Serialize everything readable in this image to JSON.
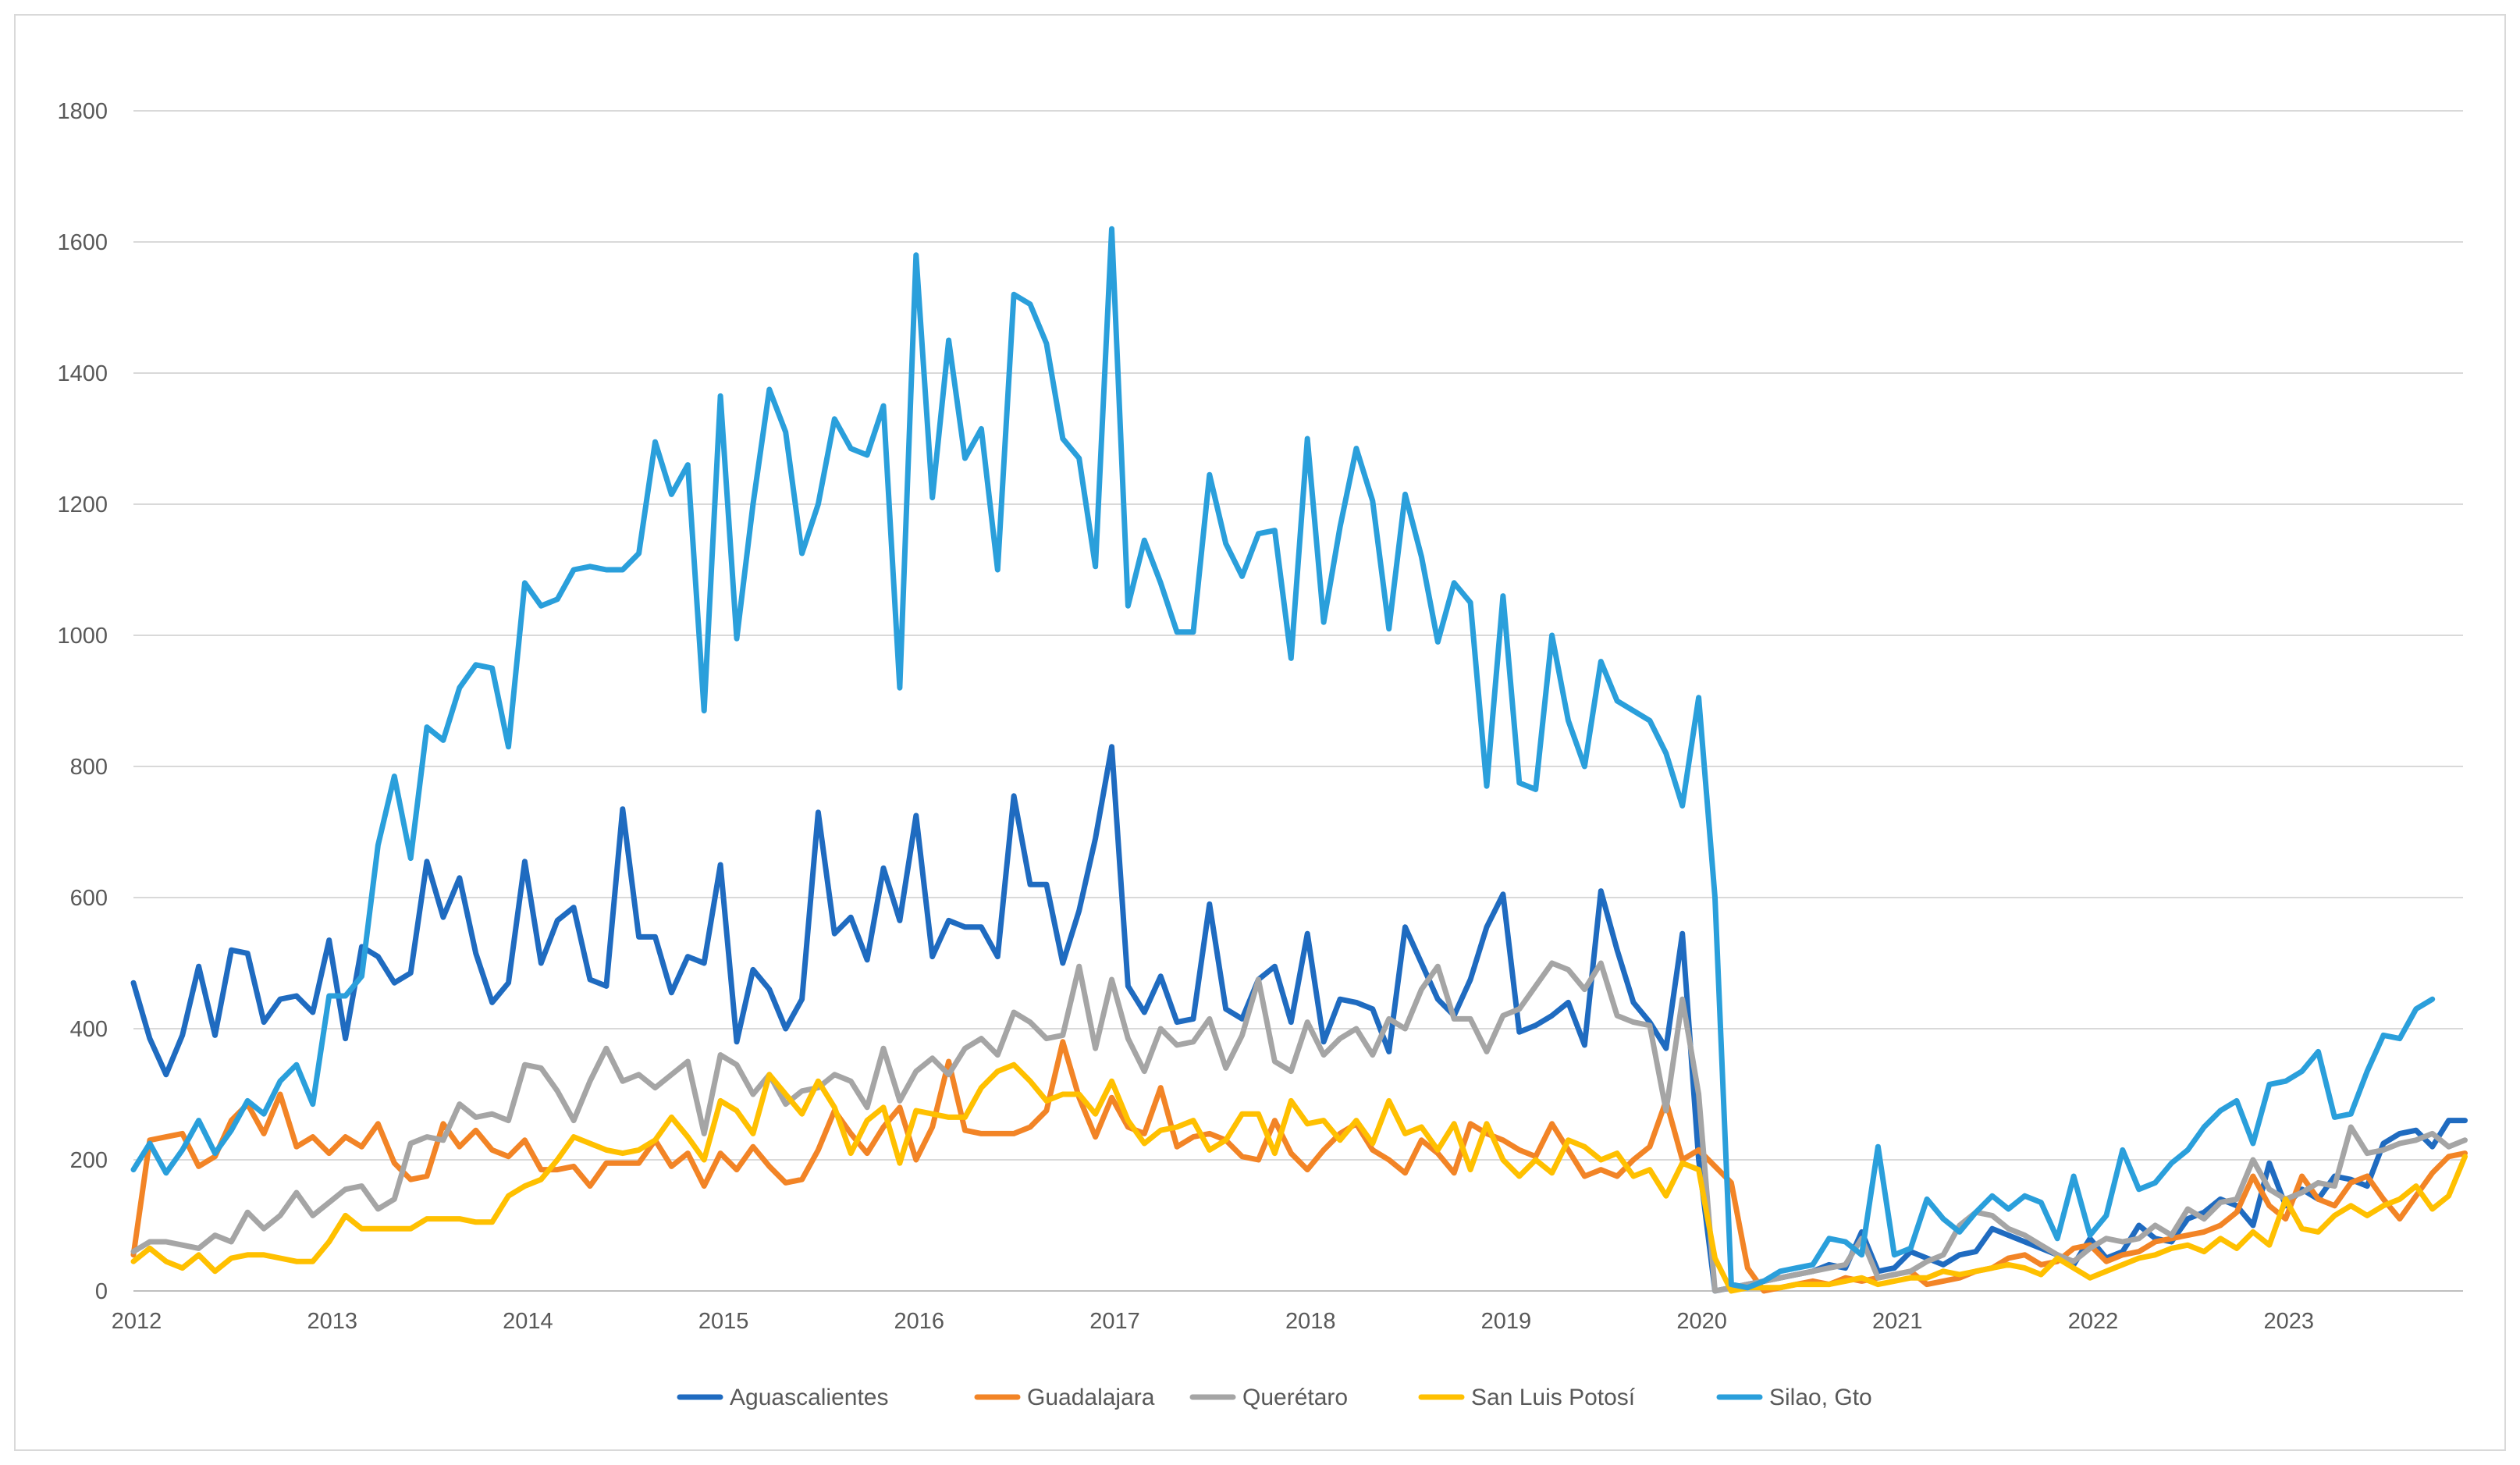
{
  "chart_data": {
    "type": "line",
    "title": "",
    "xlabel": "",
    "ylabel": "",
    "ylim": [
      0,
      1800
    ],
    "yticks": [
      "0",
      "200",
      "400",
      "600",
      "800",
      "1000",
      "1200",
      "1400",
      "1600",
      "1800"
    ],
    "xticks": [
      "2012",
      "2013",
      "2014",
      "2015",
      "2016",
      "2017",
      "2018",
      "2019",
      "2020",
      "2021",
      "2022",
      "2023"
    ],
    "x_start_year": 2012,
    "x_step_months": 1,
    "grid": true,
    "legend_position": "bottom",
    "series": [
      {
        "name": "Aguascalientes",
        "color": "#1f6bc0",
        "values": [
          470,
          385,
          330,
          390,
          495,
          390,
          520,
          515,
          410,
          445,
          450,
          425,
          535,
          385,
          525,
          510,
          470,
          485,
          655,
          570,
          630,
          515,
          440,
          470,
          655,
          500,
          565,
          585,
          475,
          465,
          735,
          540,
          540,
          455,
          510,
          500,
          650,
          380,
          490,
          460,
          400,
          445,
          730,
          545,
          570,
          505,
          645,
          565,
          725,
          510,
          565,
          555,
          555,
          510,
          755,
          620,
          620,
          500,
          580,
          690,
          830,
          465,
          425,
          480,
          410,
          415,
          590,
          430,
          415,
          475,
          495,
          410,
          545,
          380,
          445,
          440,
          430,
          365,
          555,
          500,
          445,
          420,
          475,
          555,
          605,
          395,
          405,
          420,
          440,
          375,
          610,
          520,
          440,
          410,
          370,
          545,
          200,
          0,
          5,
          10,
          15,
          20,
          25,
          30,
          40,
          35,
          90,
          30,
          35,
          60,
          50,
          40,
          55,
          60,
          95,
          85,
          75,
          65,
          55,
          40,
          80,
          50,
          60,
          100,
          80,
          75,
          110,
          120,
          140,
          130,
          100,
          195,
          130,
          155,
          140,
          175,
          170,
          160,
          225,
          240,
          245,
          220,
          260,
          260
        ]
      },
      {
        "name": "Guadalajara",
        "color": "#f28426",
        "values": [
          55,
          230,
          235,
          240,
          190,
          205,
          260,
          285,
          240,
          300,
          220,
          235,
          210,
          235,
          220,
          255,
          195,
          170,
          175,
          255,
          220,
          245,
          215,
          205,
          230,
          185,
          185,
          190,
          160,
          195,
          195,
          195,
          230,
          190,
          210,
          160,
          210,
          185,
          220,
          190,
          165,
          170,
          215,
          275,
          240,
          210,
          250,
          280,
          200,
          250,
          350,
          245,
          240,
          240,
          240,
          250,
          275,
          380,
          295,
          235,
          295,
          250,
          240,
          310,
          220,
          235,
          240,
          230,
          205,
          200,
          260,
          210,
          185,
          215,
          240,
          255,
          215,
          200,
          180,
          230,
          210,
          180,
          255,
          240,
          230,
          215,
          205,
          255,
          215,
          175,
          185,
          175,
          200,
          220,
          290,
          200,
          215,
          190,
          165,
          35,
          0,
          5,
          10,
          15,
          10,
          20,
          15,
          20,
          25,
          30,
          10,
          15,
          20,
          30,
          35,
          50,
          55,
          40,
          45,
          65,
          70,
          45,
          55,
          60,
          75,
          80,
          85,
          90,
          100,
          120,
          175,
          130,
          110,
          175,
          140,
          130,
          165,
          175,
          140,
          110,
          145,
          180,
          205,
          210
        ]
      },
      {
        "name": "Querétaro",
        "color": "#a5a5a5",
        "values": [
          60,
          75,
          75,
          70,
          65,
          85,
          75,
          120,
          95,
          115,
          150,
          115,
          135,
          155,
          160,
          125,
          140,
          225,
          235,
          230,
          285,
          265,
          270,
          260,
          345,
          340,
          305,
          260,
          320,
          370,
          320,
          330,
          310,
          330,
          350,
          240,
          360,
          345,
          300,
          330,
          285,
          305,
          310,
          330,
          320,
          280,
          370,
          290,
          335,
          355,
          330,
          370,
          385,
          360,
          425,
          410,
          385,
          390,
          495,
          370,
          475,
          385,
          335,
          400,
          375,
          380,
          415,
          340,
          390,
          475,
          350,
          335,
          410,
          360,
          385,
          400,
          360,
          415,
          400,
          460,
          495,
          415,
          415,
          365,
          420,
          430,
          465,
          500,
          490,
          460,
          500,
          420,
          410,
          405,
          275,
          445,
          300,
          0,
          5,
          10,
          15,
          20,
          25,
          30,
          35,
          40,
          80,
          20,
          25,
          30,
          45,
          55,
          100,
          120,
          115,
          95,
          85,
          70,
          55,
          45,
          65,
          80,
          75,
          80,
          100,
          85,
          125,
          110,
          135,
          140,
          200,
          155,
          140,
          150,
          165,
          160,
          250,
          210,
          215,
          225,
          230,
          240,
          220,
          230
        ]
      },
      {
        "name": "San Luis Potosí",
        "color": "#ffc000",
        "values": [
          45,
          65,
          45,
          35,
          55,
          30,
          50,
          55,
          55,
          50,
          45,
          45,
          75,
          115,
          95,
          95,
          95,
          95,
          110,
          110,
          110,
          105,
          105,
          145,
          160,
          170,
          200,
          235,
          225,
          215,
          210,
          215,
          230,
          265,
          235,
          200,
          290,
          275,
          240,
          330,
          300,
          270,
          320,
          280,
          210,
          260,
          280,
          195,
          275,
          270,
          265,
          265,
          310,
          335,
          345,
          320,
          290,
          300,
          300,
          270,
          320,
          260,
          225,
          245,
          250,
          260,
          215,
          230,
          270,
          270,
          210,
          290,
          255,
          260,
          230,
          260,
          225,
          290,
          240,
          250,
          215,
          255,
          185,
          255,
          200,
          175,
          200,
          180,
          230,
          220,
          200,
          210,
          175,
          185,
          145,
          195,
          185,
          50,
          0,
          5,
          5,
          5,
          10,
          10,
          10,
          15,
          20,
          10,
          15,
          20,
          20,
          30,
          25,
          30,
          35,
          40,
          35,
          25,
          50,
          35,
          20,
          30,
          40,
          50,
          55,
          65,
          70,
          60,
          80,
          65,
          90,
          70,
          140,
          95,
          90,
          115,
          130,
          115,
          130,
          140,
          160,
          125,
          145,
          205
        ]
      },
      {
        "name": "Silao, Gto",
        "color": "#2a9fdb",
        "values": [
          185,
          225,
          180,
          215,
          260,
          210,
          245,
          290,
          270,
          320,
          345,
          285,
          450,
          450,
          480,
          680,
          785,
          660,
          860,
          840,
          920,
          955,
          950,
          830,
          1080,
          1045,
          1055,
          1100,
          1105,
          1100,
          1100,
          1125,
          1295,
          1215,
          1260,
          885,
          1365,
          995,
          1200,
          1375,
          1310,
          1125,
          1200,
          1330,
          1285,
          1275,
          1350,
          920,
          1580,
          1210,
          1450,
          1270,
          1315,
          1100,
          1520,
          1505,
          1445,
          1300,
          1270,
          1105,
          1620,
          1045,
          1145,
          1080,
          1005,
          1005,
          1245,
          1140,
          1090,
          1155,
          1160,
          965,
          1300,
          1020,
          1165,
          1285,
          1205,
          1010,
          1215,
          1120,
          990,
          1080,
          1050,
          770,
          1060,
          775,
          765,
          1000,
          870,
          800,
          960,
          900,
          885,
          870,
          820,
          740,
          905,
          600,
          10,
          5,
          15,
          30,
          35,
          40,
          80,
          75,
          55,
          220,
          55,
          65,
          140,
          110,
          90,
          120,
          145,
          125,
          145,
          135,
          80,
          175,
          85,
          115,
          215,
          155,
          165,
          195,
          215,
          250,
          275,
          290,
          225,
          315,
          320,
          335,
          365,
          265,
          270,
          335,
          390,
          385,
          430,
          445
        ]
      }
    ]
  },
  "legend": {
    "items": [
      "Aguascalientes",
      "Guadalajara",
      "Querétaro",
      "San Luis Potosí",
      "Silao, Gto"
    ]
  }
}
